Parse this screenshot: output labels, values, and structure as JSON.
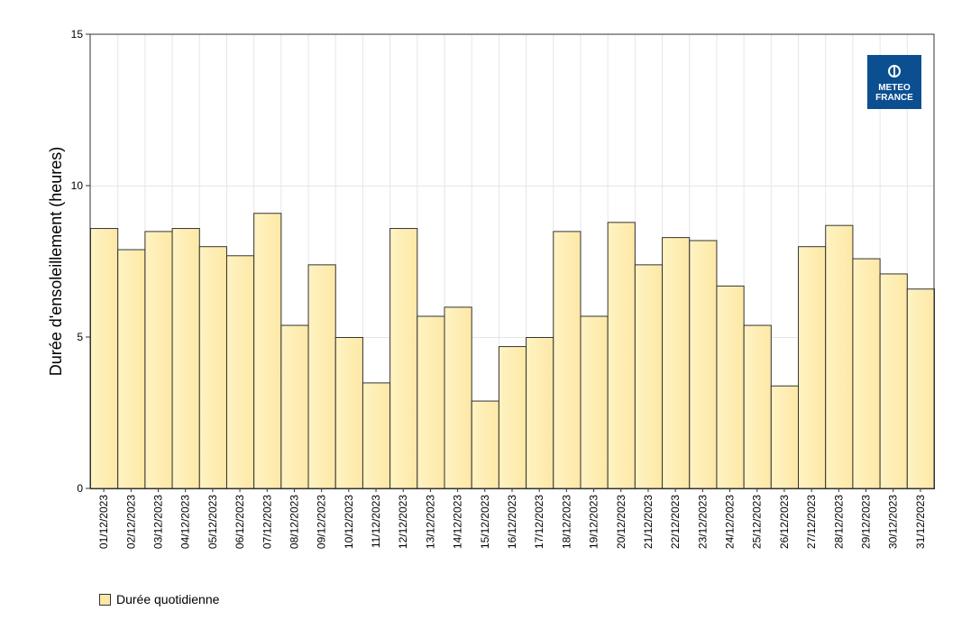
{
  "colors": {
    "bar_fill_light": "#fff3c2",
    "bar_fill_dark": "#fde8a6",
    "bar_stroke": "#333333",
    "grid": "#e6e6e6",
    "logo_bg": "#0b4f91"
  },
  "logo": {
    "line1": "METEO",
    "line2": "FRANCE"
  },
  "legend": {
    "label": "Durée quotidienne"
  },
  "chart_data": {
    "type": "bar",
    "title": "",
    "xlabel": "",
    "ylabel": "Durée d'ensoleillement (heures)",
    "ylim": [
      0,
      15
    ],
    "yticks": [
      0,
      5,
      10,
      15
    ],
    "grid": true,
    "legend_position": "bottom-left",
    "series": [
      {
        "name": "Durée quotidienne"
      }
    ],
    "categories": [
      "01/12/2023",
      "02/12/2023",
      "03/12/2023",
      "04/12/2023",
      "05/12/2023",
      "06/12/2023",
      "07/12/2023",
      "08/12/2023",
      "09/12/2023",
      "10/12/2023",
      "11/12/2023",
      "12/12/2023",
      "13/12/2023",
      "14/12/2023",
      "15/12/2023",
      "16/12/2023",
      "17/12/2023",
      "18/12/2023",
      "19/12/2023",
      "20/12/2023",
      "21/12/2023",
      "22/12/2023",
      "23/12/2023",
      "24/12/2023",
      "25/12/2023",
      "26/12/2023",
      "27/12/2023",
      "28/12/2023",
      "29/12/2023",
      "30/12/2023",
      "31/12/2023"
    ],
    "values": [
      8.6,
      7.9,
      8.5,
      8.6,
      8.0,
      7.7,
      9.1,
      5.4,
      7.4,
      5.0,
      3.5,
      8.6,
      5.7,
      6.0,
      2.9,
      4.7,
      5.0,
      8.5,
      5.7,
      8.8,
      7.4,
      8.3,
      8.2,
      6.7,
      5.4,
      3.4,
      8.0,
      8.7,
      7.6,
      7.1,
      6.6
    ]
  }
}
